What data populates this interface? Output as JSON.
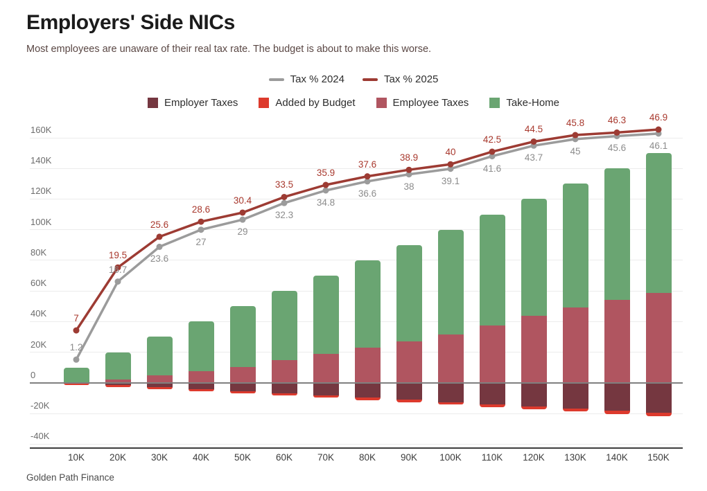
{
  "header": {
    "title": "Employers' Side NICs",
    "subtitle": "Most employees are unaware of their real tax rate. The budget is about to make this worse."
  },
  "footer": {
    "attribution": "Golden Path Finance"
  },
  "colors": {
    "employer_taxes": "#753740",
    "added_by_budget": "#dd3a2d",
    "employee_taxes": "#b05560",
    "take_home": "#6aa572",
    "line_2024": "#9b9b9b",
    "line_2025": "#9d3b33",
    "label_2024": "#8c8c8c",
    "label_2025": "#a8382d",
    "gridline": "#ececec",
    "zero_line": "#7f7f7f",
    "x_axis_line": "#3d3d3d"
  },
  "legend": {
    "lines": [
      {
        "label": "Tax % 2024",
        "color": "#9b9b9b"
      },
      {
        "label": "Tax % 2025",
        "color": "#9d3b33"
      }
    ],
    "bars": [
      {
        "label": "Employer Taxes",
        "color": "#753740"
      },
      {
        "label": "Added by Budget",
        "color": "#dd3a2d"
      },
      {
        "label": "Employee Taxes",
        "color": "#b05560"
      },
      {
        "label": "Take-Home",
        "color": "#6aa572"
      }
    ]
  },
  "chart_data": {
    "type": "combo (stacked bar + line)",
    "title": "Employers' Side NICs",
    "categories": [
      "10K",
      "20K",
      "30K",
      "40K",
      "50K",
      "60K",
      "70K",
      "80K",
      "90K",
      "100K",
      "110K",
      "120K",
      "130K",
      "140K",
      "150K"
    ],
    "x_values": [
      10000,
      20000,
      30000,
      40000,
      50000,
      60000,
      70000,
      80000,
      90000,
      100000,
      110000,
      120000,
      130000,
      140000,
      150000
    ],
    "bar_series": [
      {
        "name": "Employee Taxes",
        "stack": "positive",
        "values": [
          0,
          2080,
          4880,
          7680,
          10480,
          14643,
          18843,
          23043,
          27243,
          31443,
          37643,
          43843,
          49314,
          54014,
          58714
        ]
      },
      {
        "name": "Take-Home",
        "stack": "positive",
        "values": [
          10000,
          17920,
          25120,
          32320,
          39520,
          45357,
          51157,
          56957,
          62757,
          68557,
          72357,
          76157,
          80686,
          85986,
          91286
        ]
      },
      {
        "name": "Employer Taxes",
        "stack": "negative",
        "values": [
          124,
          1504,
          2884,
          4264,
          5644,
          7024,
          8404,
          9784,
          11164,
          12544,
          13924,
          15304,
          16684,
          18064,
          19444
        ]
      },
      {
        "name": "Added by Budget",
        "stack": "negative",
        "values": [
          626,
          746,
          866,
          986,
          1106,
          1226,
          1346,
          1466,
          1586,
          1706,
          1826,
          1946,
          2066,
          2186,
          2306
        ]
      }
    ],
    "line_series": [
      {
        "name": "Tax % 2024",
        "values": [
          1.2,
          16.7,
          23.6,
          27,
          29,
          32.3,
          34.8,
          36.6,
          38,
          39.1,
          41.6,
          43.7,
          45,
          45.6,
          46.1
        ],
        "labels": [
          "1.2",
          "16.7",
          "23.6",
          "27",
          "29",
          "32.3",
          "34.8",
          "36.6",
          "38",
          "39.1",
          "41.6",
          "43.7",
          "45",
          "45.6",
          "46.1"
        ]
      },
      {
        "name": "Tax % 2025",
        "values": [
          7,
          19.5,
          25.6,
          28.6,
          30.4,
          33.5,
          35.9,
          37.6,
          38.9,
          40,
          42.5,
          44.5,
          45.8,
          46.3,
          46.9
        ],
        "labels": [
          "7",
          "19.5",
          "25.6",
          "28.6",
          "30.4",
          "33.5",
          "35.9",
          "37.6",
          "38.9",
          "40",
          "42.5",
          "44.5",
          "45.8",
          "46.3",
          "46.9"
        ]
      }
    ],
    "y_axis": {
      "range": [
        -40000,
        160000
      ],
      "ticks": [
        {
          "value": 160000,
          "label": "160K"
        },
        {
          "value": 140000,
          "label": "140K"
        },
        {
          "value": 120000,
          "label": "120K"
        },
        {
          "value": 100000,
          "label": "100K"
        },
        {
          "value": 80000,
          "label": "80K"
        },
        {
          "value": 60000,
          "label": "60K"
        },
        {
          "value": 40000,
          "label": "40K"
        },
        {
          "value": 20000,
          "label": "20K"
        },
        {
          "value": 0,
          "label": "0"
        },
        {
          "value": -20000,
          "label": "-20K"
        },
        {
          "value": -40000,
          "label": "-40K"
        }
      ]
    },
    "x_axis": {
      "labels": [
        "10K",
        "20K",
        "30K",
        "40K",
        "50K",
        "60K",
        "70K",
        "80K",
        "90K",
        "100K",
        "110K",
        "120K",
        "130K",
        "140K",
        "150K"
      ]
    },
    "legend_position": "top-center",
    "grid": true
  }
}
